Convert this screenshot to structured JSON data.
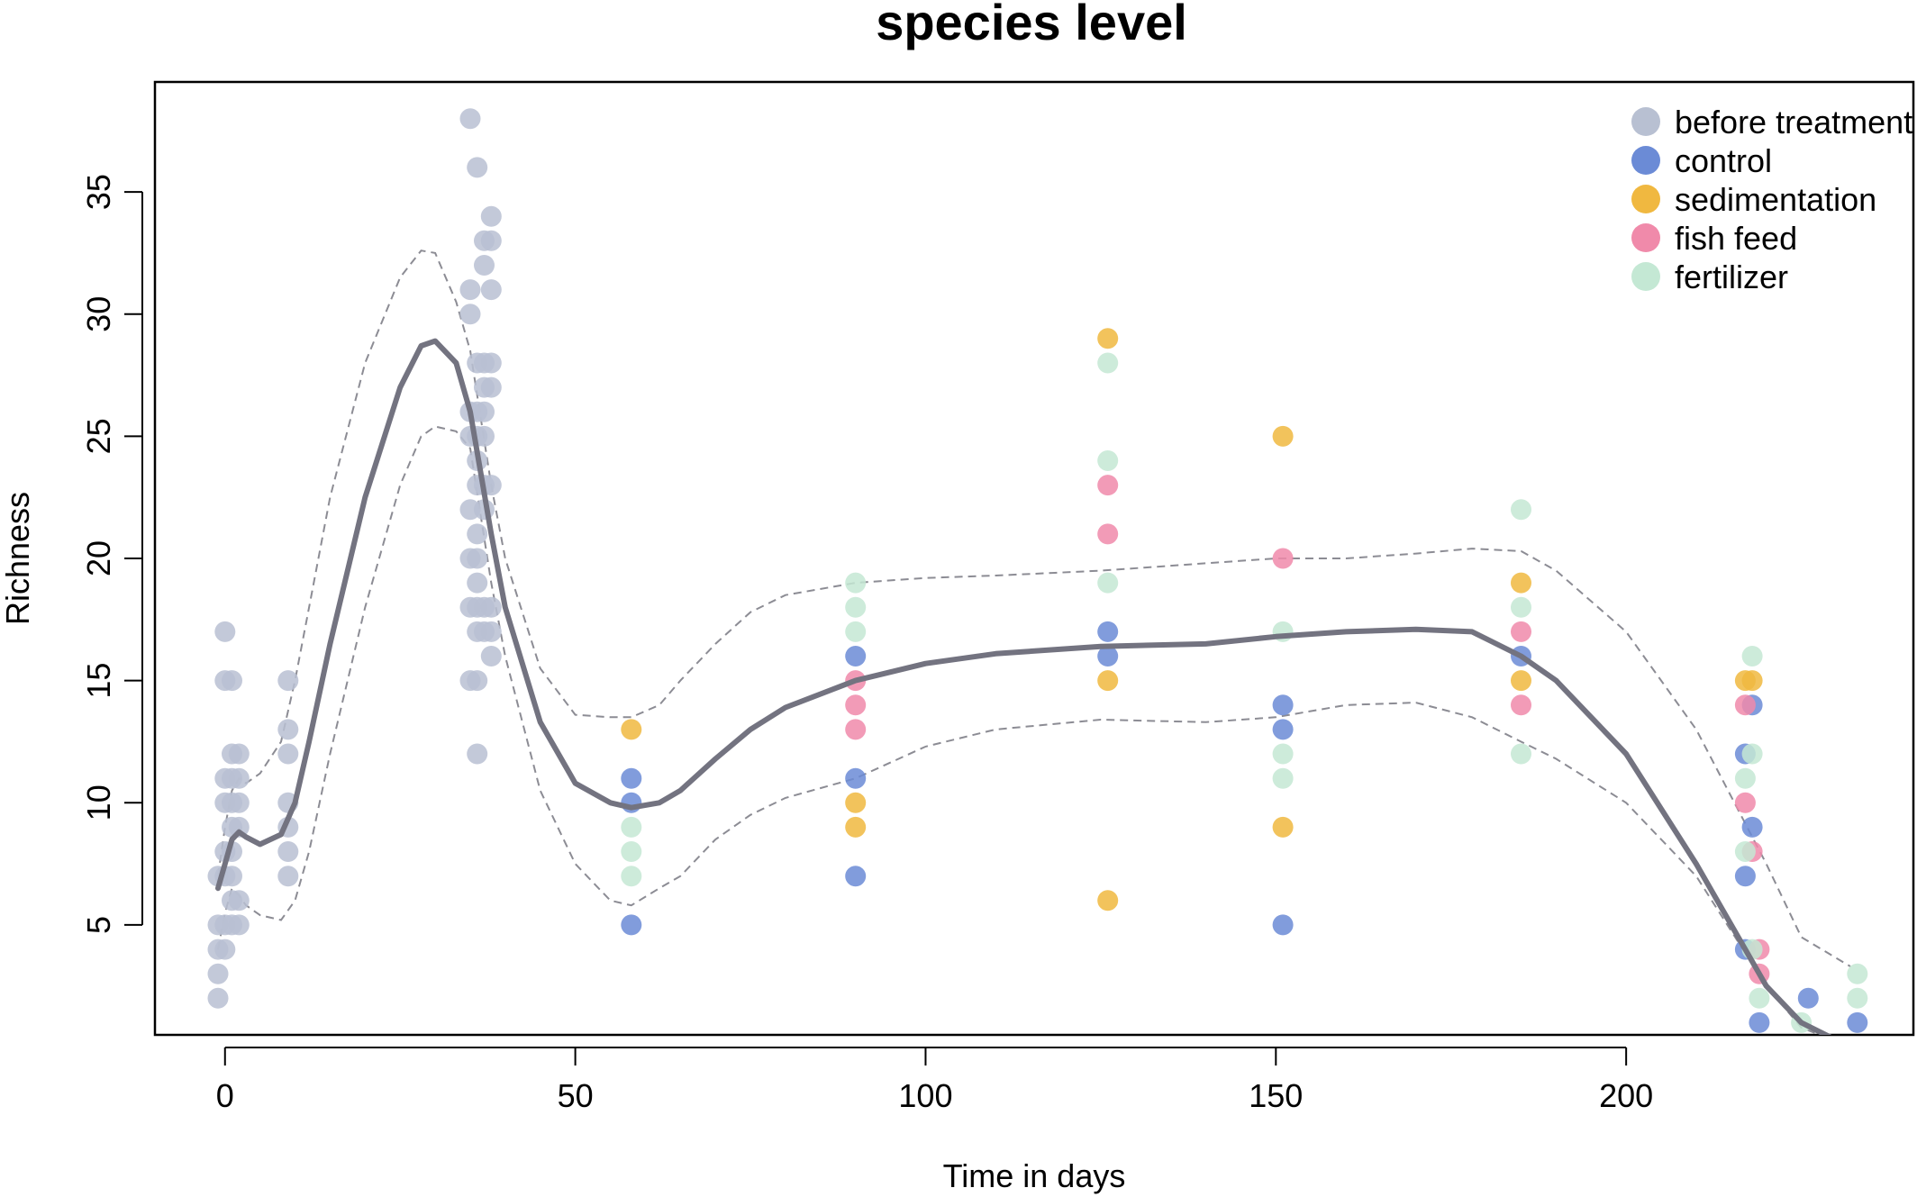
{
  "chart_data": {
    "type": "scatter",
    "title": "species level",
    "xlabel": "Time in days",
    "ylabel": "Richness",
    "xlim": [
      -10,
      241
    ],
    "ylim": [
      0.5,
      39.5
    ],
    "x_ticks": [
      0,
      50,
      100,
      150,
      200
    ],
    "x_tick_labels": [
      "0",
      "50",
      "100",
      "150",
      "200"
    ],
    "y_ticks": [
      5,
      10,
      15,
      20,
      25,
      30,
      35
    ],
    "y_tick_labels": [
      "5",
      "10",
      "15",
      "20",
      "25",
      "30",
      "35"
    ],
    "legend_position": "top-right",
    "series": [
      {
        "name": "before treatment",
        "color": "#b8c0d2",
        "points": [
          [
            -1,
            2
          ],
          [
            -1,
            3
          ],
          [
            -1,
            4
          ],
          [
            -1,
            5
          ],
          [
            -1,
            7
          ],
          [
            0,
            4
          ],
          [
            0,
            5
          ],
          [
            0,
            7
          ],
          [
            0,
            8
          ],
          [
            0,
            10
          ],
          [
            0,
            11
          ],
          [
            0,
            15
          ],
          [
            0,
            17
          ],
          [
            1,
            5
          ],
          [
            1,
            6
          ],
          [
            1,
            7
          ],
          [
            1,
            8
          ],
          [
            1,
            9
          ],
          [
            1,
            10
          ],
          [
            1,
            11
          ],
          [
            1,
            12
          ],
          [
            1,
            15
          ],
          [
            2,
            5
          ],
          [
            2,
            6
          ],
          [
            2,
            9
          ],
          [
            2,
            10
          ],
          [
            2,
            11
          ],
          [
            2,
            12
          ],
          [
            9,
            7
          ],
          [
            9,
            8
          ],
          [
            9,
            9
          ],
          [
            9,
            10
          ],
          [
            9,
            12
          ],
          [
            9,
            13
          ],
          [
            9,
            15
          ],
          [
            35,
            15
          ],
          [
            35,
            18
          ],
          [
            35,
            20
          ],
          [
            35,
            22
          ],
          [
            35,
            25
          ],
          [
            35,
            26
          ],
          [
            35,
            30
          ],
          [
            35,
            31
          ],
          [
            35,
            38
          ],
          [
            36,
            12
          ],
          [
            36,
            15
          ],
          [
            36,
            17
          ],
          [
            36,
            18
          ],
          [
            36,
            19
          ],
          [
            36,
            20
          ],
          [
            36,
            21
          ],
          [
            36,
            23
          ],
          [
            36,
            24
          ],
          [
            36,
            25
          ],
          [
            36,
            26
          ],
          [
            36,
            28
          ],
          [
            36,
            36
          ],
          [
            37,
            17
          ],
          [
            37,
            18
          ],
          [
            37,
            22
          ],
          [
            37,
            23
          ],
          [
            37,
            25
          ],
          [
            37,
            26
          ],
          [
            37,
            27
          ],
          [
            37,
            28
          ],
          [
            37,
            32
          ],
          [
            37,
            33
          ],
          [
            38,
            16
          ],
          [
            38,
            17
          ],
          [
            38,
            18
          ],
          [
            38,
            23
          ],
          [
            38,
            27
          ],
          [
            38,
            28
          ],
          [
            38,
            31
          ],
          [
            38,
            33
          ],
          [
            38,
            34
          ]
        ]
      },
      {
        "name": "control",
        "color": "#6b8bd6",
        "points": [
          [
            58,
            5
          ],
          [
            58,
            10
          ],
          [
            58,
            11
          ],
          [
            90,
            7
          ],
          [
            90,
            11
          ],
          [
            90,
            16
          ],
          [
            126,
            16
          ],
          [
            126,
            17
          ],
          [
            151,
            5
          ],
          [
            151,
            13
          ],
          [
            151,
            14
          ],
          [
            185,
            16
          ],
          [
            217,
            4
          ],
          [
            217,
            7
          ],
          [
            217,
            12
          ],
          [
            218,
            9
          ],
          [
            218,
            14
          ],
          [
            219,
            1
          ],
          [
            226,
            2
          ],
          [
            233,
            1
          ]
        ]
      },
      {
        "name": "sedimentation",
        "color": "#f0b840",
        "points": [
          [
            58,
            13
          ],
          [
            90,
            9
          ],
          [
            90,
            10
          ],
          [
            126,
            6
          ],
          [
            126,
            15
          ],
          [
            126,
            29
          ],
          [
            151,
            9
          ],
          [
            151,
            25
          ],
          [
            185,
            15
          ],
          [
            185,
            19
          ],
          [
            217,
            15
          ],
          [
            218,
            15
          ]
        ]
      },
      {
        "name": "fish feed",
        "color": "#f08aaa",
        "points": [
          [
            90,
            13
          ],
          [
            90,
            14
          ],
          [
            90,
            15
          ],
          [
            126,
            21
          ],
          [
            126,
            23
          ],
          [
            151,
            20
          ],
          [
            185,
            14
          ],
          [
            185,
            17
          ],
          [
            217,
            10
          ],
          [
            217,
            14
          ],
          [
            218,
            8
          ],
          [
            219,
            3
          ],
          [
            219,
            4
          ]
        ]
      },
      {
        "name": "fertilizer",
        "color": "#c4e8d4",
        "points": [
          [
            58,
            7
          ],
          [
            58,
            8
          ],
          [
            58,
            9
          ],
          [
            90,
            17
          ],
          [
            90,
            18
          ],
          [
            90,
            19
          ],
          [
            126,
            19
          ],
          [
            126,
            24
          ],
          [
            126,
            28
          ],
          [
            151,
            11
          ],
          [
            151,
            12
          ],
          [
            151,
            17
          ],
          [
            185,
            12
          ],
          [
            185,
            18
          ],
          [
            185,
            22
          ],
          [
            217,
            8
          ],
          [
            217,
            11
          ],
          [
            218,
            4
          ],
          [
            218,
            12
          ],
          [
            218,
            16
          ],
          [
            219,
            2
          ],
          [
            225,
            1
          ],
          [
            233,
            2
          ],
          [
            233,
            3
          ]
        ]
      }
    ],
    "trend": {
      "color": "#737380",
      "x": [
        -1,
        0,
        1,
        2,
        3,
        5,
        8,
        10,
        12,
        15,
        20,
        25,
        28,
        30,
        33,
        35,
        38,
        40,
        45,
        50,
        55,
        58,
        62,
        65,
        70,
        75,
        80,
        90,
        100,
        110,
        125,
        140,
        150,
        160,
        170,
        178,
        185,
        190,
        200,
        210,
        220,
        225,
        232
      ],
      "fit": [
        6.5,
        7.5,
        8.5,
        8.8,
        8.6,
        8.3,
        8.7,
        10.0,
        12.5,
        16.5,
        22.5,
        27.0,
        28.7,
        28.9,
        28.0,
        26.0,
        21.0,
        18.0,
        13.3,
        10.8,
        10.0,
        9.8,
        10.0,
        10.5,
        11.8,
        13.0,
        13.9,
        15.0,
        15.7,
        16.1,
        16.4,
        16.5,
        16.8,
        17.0,
        17.1,
        17.0,
        16.0,
        15.0,
        12.0,
        7.5,
        2.5,
        1.0,
        0.0
      ],
      "upper": [
        7.0,
        9.0,
        10.5,
        11.0,
        10.8,
        11.2,
        12.5,
        15.0,
        18.0,
        22.5,
        28.0,
        31.5,
        32.6,
        32.5,
        30.5,
        28.5,
        23.0,
        20.0,
        15.5,
        13.6,
        13.5,
        13.5,
        14.0,
        15.0,
        16.5,
        17.8,
        18.5,
        19.0,
        19.2,
        19.3,
        19.5,
        19.8,
        20.0,
        20.0,
        20.2,
        20.4,
        20.3,
        19.5,
        17.0,
        13.0,
        7.5,
        4.5,
        3.3
      ],
      "lower": [
        4.0,
        5.5,
        6.5,
        6.2,
        5.8,
        5.4,
        5.2,
        6.0,
        8.0,
        12.0,
        18.0,
        23.0,
        25.0,
        25.4,
        25.2,
        24.5,
        19.0,
        16.0,
        10.5,
        7.5,
        6.0,
        5.8,
        6.5,
        7.0,
        8.5,
        9.5,
        10.2,
        11.0,
        12.3,
        13.0,
        13.4,
        13.3,
        13.5,
        14.0,
        14.1,
        13.5,
        12.5,
        11.8,
        10.0,
        7.0,
        2.5,
        0.8,
        0.0
      ]
    }
  }
}
